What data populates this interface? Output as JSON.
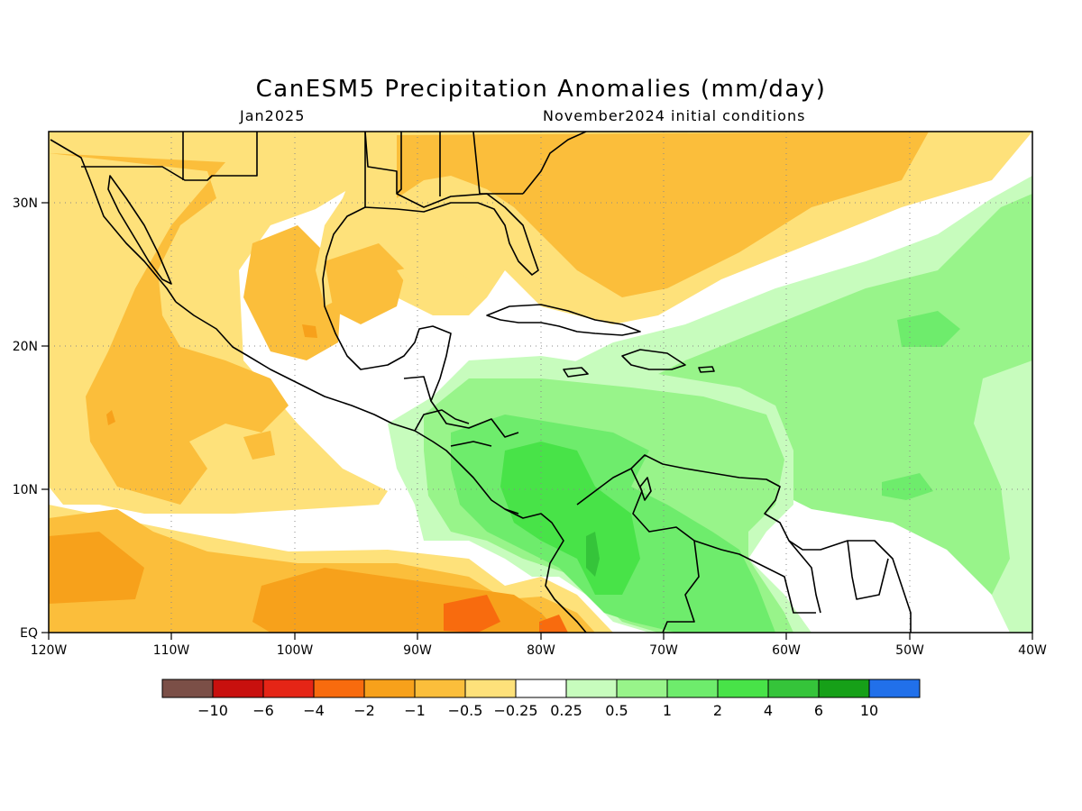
{
  "title": "CanESM5 Precipitation Anomalies (mm/day)",
  "subtitle_left": "Jan2025",
  "subtitle_right": "November2024 initial conditions",
  "map": {
    "lon_range": [
      -120,
      -40
    ],
    "lat_range": [
      0,
      35
    ],
    "lon_ticks": [
      "120W",
      "110W",
      "100W",
      "90W",
      "80W",
      "70W",
      "60W",
      "50W",
      "40W"
    ],
    "lat_ticks": [
      "EQ",
      "10N",
      "20N",
      "30N"
    ],
    "grid": true
  },
  "colorbar": {
    "colors": [
      "#7b4f47",
      "#c8100e",
      "#e52516",
      "#f86b0e",
      "#f7a11b",
      "#fbbe3b",
      "#fee17a",
      "#ffffff",
      "#c7fcbd",
      "#98f48a",
      "#6eec6c",
      "#48e348",
      "#35c43a",
      "#16a018",
      "#2170ea"
    ],
    "labels": [
      "−10",
      "−6",
      "−4",
      "−2",
      "−1",
      "−0.5",
      "−0.25",
      "0.25",
      "0.5",
      "1",
      "2",
      "4",
      "6",
      "10"
    ]
  }
}
